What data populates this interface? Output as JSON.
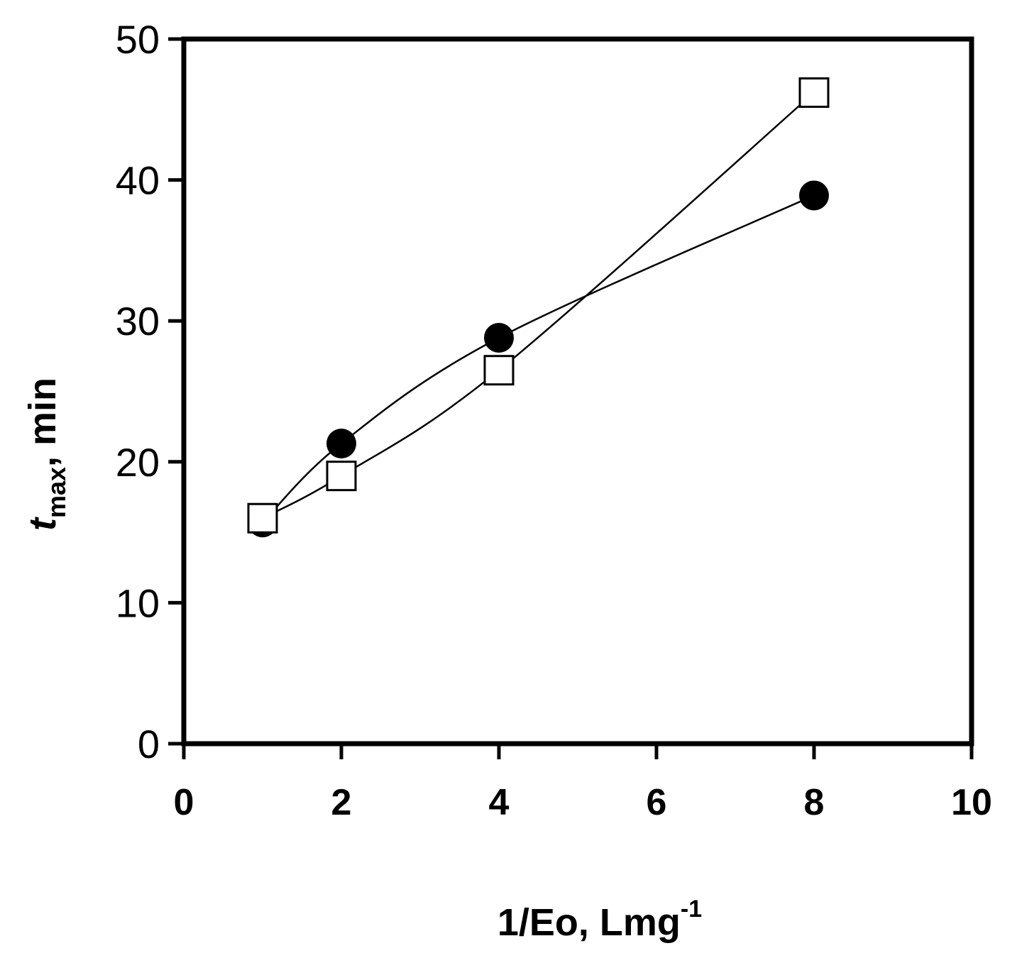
{
  "chart_data": {
    "type": "line",
    "title": "",
    "xlabel": {
      "main": "1/Eo, Lmg",
      "superscript": "-1"
    },
    "ylabel": {
      "var": "t",
      "subscript": "max",
      "rest": ", min"
    },
    "xlim": [
      0,
      10
    ],
    "ylim": [
      0,
      50
    ],
    "x_ticks": [
      "0",
      "2",
      "4",
      "6",
      "8",
      "10"
    ],
    "y_ticks": [
      "0",
      "10",
      "20",
      "30",
      "40",
      "50"
    ],
    "grid": false,
    "legend": "none",
    "series": [
      {
        "marker": "filled-circle",
        "color": "#000000",
        "line": "smooth",
        "points": [
          {
            "x": 1,
            "y": 15.7
          },
          {
            "x": 2,
            "y": 21.3
          },
          {
            "x": 4,
            "y": 28.8
          },
          {
            "x": 8,
            "y": 38.9
          }
        ]
      },
      {
        "marker": "open-square",
        "color": "#000000",
        "line": "smooth",
        "points": [
          {
            "x": 1,
            "y": 16.0
          },
          {
            "x": 2,
            "y": 19.0
          },
          {
            "x": 4,
            "y": 26.5
          },
          {
            "x": 8,
            "y": 46.2
          }
        ]
      }
    ]
  }
}
